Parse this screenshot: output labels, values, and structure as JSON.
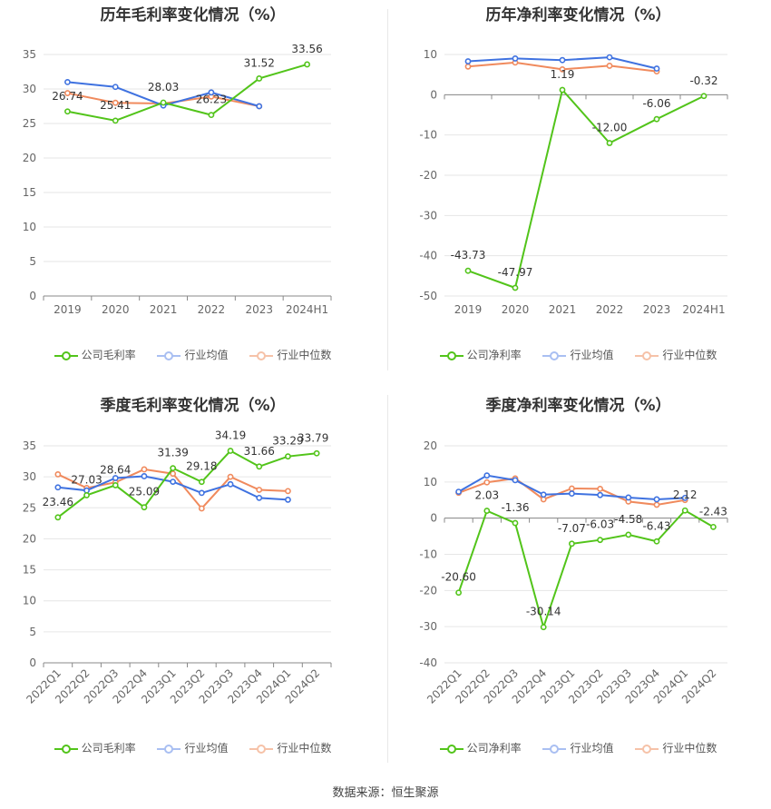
{
  "legend": {
    "gross": "公司毛利率",
    "net": "公司净利率",
    "industry_avg": "行业均值",
    "industry_median": "行业中位数"
  },
  "source": "数据来源：恒生聚源",
  "colors": {
    "company": "#52c41a",
    "industry_avg": "#3f72e0",
    "industry_median": "#f08a5d",
    "grid": "#e6e6e6",
    "axis": "#666666"
  },
  "chart_data": [
    {
      "type": "line",
      "title": "历年毛利率变化情况（%）",
      "categories": [
        "2019",
        "2020",
        "2021",
        "2022",
        "2023",
        "2024H1"
      ],
      "ylim": [
        0,
        35
      ],
      "yticks": [
        0,
        5,
        10,
        15,
        20,
        25,
        30,
        35
      ],
      "grid": true,
      "legend": "bottom",
      "series": [
        {
          "name": "公司毛利率",
          "values": [
            26.74,
            25.41,
            28.03,
            26.23,
            31.52,
            33.56
          ],
          "labels": [
            "26.74",
            "25.41",
            "28.03",
            "26.23",
            "31.52",
            "33.56"
          ]
        },
        {
          "name": "行业均值",
          "values": [
            31.0,
            30.3,
            27.6,
            29.5,
            27.5,
            null
          ]
        },
        {
          "name": "行业中位数",
          "values": [
            29.4,
            28.0,
            27.9,
            28.9,
            27.5,
            null
          ]
        }
      ]
    },
    {
      "type": "line",
      "title": "历年净利率变化情况（%）",
      "categories": [
        "2019",
        "2020",
        "2021",
        "2022",
        "2023",
        "2024H1"
      ],
      "ylim": [
        -50,
        10
      ],
      "yticks": [
        -50,
        -40,
        -30,
        -20,
        -10,
        0,
        10
      ],
      "grid": true,
      "legend": "bottom",
      "series": [
        {
          "name": "公司净利率",
          "values": [
            -43.73,
            -47.97,
            1.19,
            -12.0,
            -6.06,
            -0.32
          ],
          "labels": [
            "-43.73",
            "-47.97",
            "1.19",
            "-12.00",
            "-6.06",
            "-0.32"
          ]
        },
        {
          "name": "行业均值",
          "values": [
            8.3,
            9.0,
            8.6,
            9.3,
            6.5,
            null
          ]
        },
        {
          "name": "行业中位数",
          "values": [
            7.0,
            8.0,
            6.3,
            7.2,
            5.8,
            null
          ]
        }
      ]
    },
    {
      "type": "line",
      "title": "季度毛利率变化情况（%）",
      "categories": [
        "2022Q1",
        "2022Q2",
        "2022Q3",
        "2022Q4",
        "2023Q1",
        "2023Q2",
        "2023Q3",
        "2023Q4",
        "2024Q1",
        "2024Q2"
      ],
      "ylim": [
        0,
        35
      ],
      "yticks": [
        0,
        5,
        10,
        15,
        20,
        25,
        30,
        35
      ],
      "grid": true,
      "legend": "bottom",
      "series": [
        {
          "name": "公司毛利率",
          "values": [
            23.46,
            27.03,
            28.64,
            25.09,
            31.39,
            29.18,
            34.19,
            31.66,
            33.29,
            33.79
          ],
          "labels": [
            "23.46",
            "27.03",
            "28.64",
            "25.09",
            "31.39",
            "29.18",
            "34.19",
            "31.66",
            "33.29",
            "33.79"
          ]
        },
        {
          "name": "行业均值",
          "values": [
            28.3,
            27.8,
            29.8,
            30.1,
            29.2,
            27.4,
            28.8,
            26.6,
            26.3,
            null
          ]
        },
        {
          "name": "行业中位数",
          "values": [
            30.4,
            28.2,
            29.1,
            31.2,
            30.5,
            24.9,
            30.0,
            27.9,
            27.7,
            null
          ]
        }
      ]
    },
    {
      "type": "line",
      "title": "季度净利率变化情况（%）",
      "categories": [
        "2022Q1",
        "2022Q2",
        "2022Q3",
        "2022Q4",
        "2023Q1",
        "2023Q2",
        "2023Q3",
        "2023Q4",
        "2024Q1",
        "2024Q2"
      ],
      "ylim": [
        -40,
        20
      ],
      "yticks": [
        -40,
        -30,
        -20,
        -10,
        0,
        10,
        20
      ],
      "grid": true,
      "legend": "bottom",
      "series": [
        {
          "name": "公司净利率",
          "values": [
            -20.6,
            2.03,
            -1.36,
            -30.14,
            -7.07,
            -6.03,
            -4.58,
            -6.43,
            2.12,
            -2.43
          ],
          "labels": [
            "-20.60",
            "2.03",
            "-1.36",
            "-30.14",
            "-7.07",
            "-6.03",
            "-4.58",
            "-6.43",
            "2.12",
            "-2.43"
          ]
        },
        {
          "name": "行业均值",
          "values": [
            7.3,
            11.8,
            10.5,
            6.5,
            6.8,
            6.4,
            5.7,
            5.2,
            5.6,
            null
          ]
        },
        {
          "name": "行业中位数",
          "values": [
            7.0,
            9.9,
            11.0,
            5.2,
            8.2,
            8.1,
            4.6,
            3.7,
            5.0,
            null
          ]
        }
      ]
    }
  ]
}
